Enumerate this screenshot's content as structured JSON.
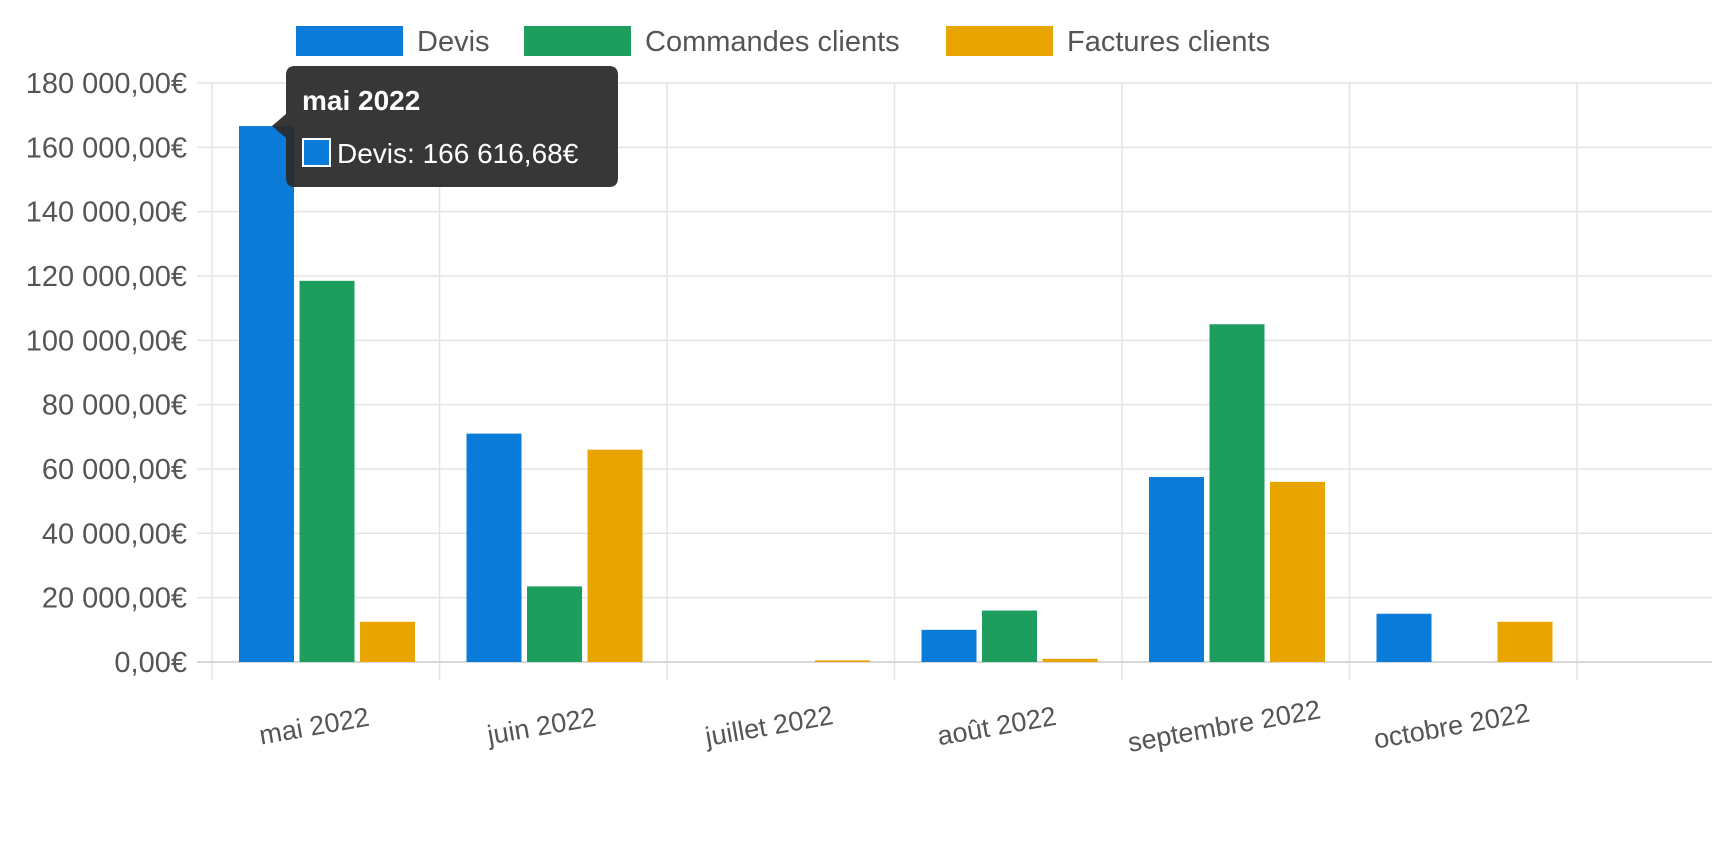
{
  "chart_data": {
    "type": "bar",
    "categories": [
      "mai 2022",
      "juin 2022",
      "juillet 2022",
      "août 2022",
      "septembre 2022",
      "octobre 2022"
    ],
    "series": [
      {
        "name": "Devis",
        "color": "#0a7bd8",
        "values": [
          166616.68,
          71000,
          0,
          10000,
          57500,
          15000
        ]
      },
      {
        "name": "Commandes clients",
        "color": "#1e9e5e",
        "values": [
          118500,
          23500,
          0,
          16000,
          105000,
          0
        ]
      },
      {
        "name": "Factures clients",
        "color": "#e8a500",
        "values": [
          12500,
          66000,
          500,
          1000,
          56000,
          12500
        ]
      }
    ],
    "ylim": [
      0,
      180000
    ],
    "yticks": [
      "0,00€",
      "20 000,00€",
      "40 000,00€",
      "60 000,00€",
      "80 000,00€",
      "100 000,00€",
      "120 000,00€",
      "140 000,00€",
      "160 000,00€",
      "180 000,00€"
    ],
    "ytick_values": [
      0,
      20000,
      40000,
      60000,
      80000,
      100000,
      120000,
      140000,
      160000,
      180000
    ],
    "grid": true,
    "legend_position": "top-center",
    "tooltip": {
      "title": "mai 2022",
      "text": "Devis: 166 616,68€"
    }
  }
}
